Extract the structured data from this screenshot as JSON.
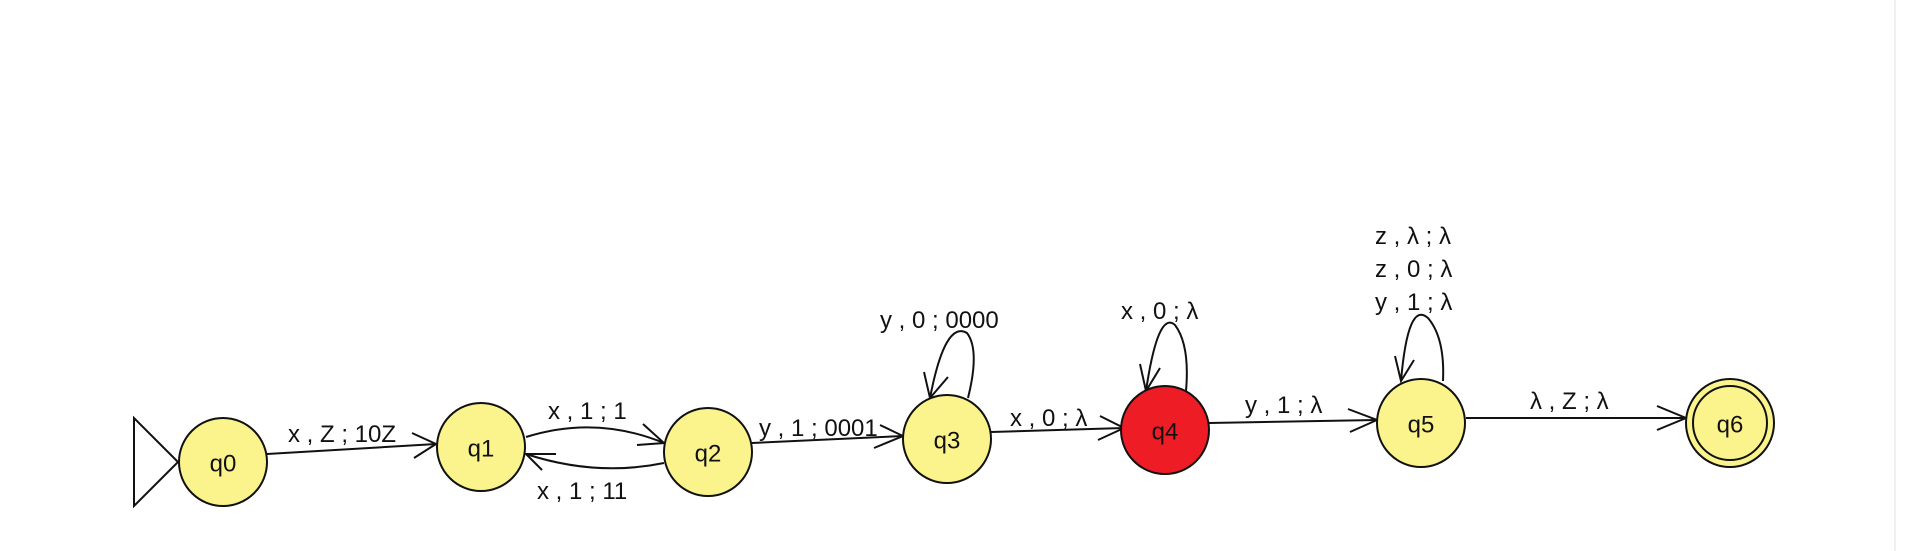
{
  "diagram": {
    "type": "pushdown-automaton",
    "colors": {
      "state_fill": "#FBF48C",
      "active_state_fill": "#EE1C25",
      "stroke": "#111111"
    },
    "states": [
      {
        "id": "q0",
        "label": "q0",
        "initial": true
      },
      {
        "id": "q1",
        "label": "q1"
      },
      {
        "id": "q2",
        "label": "q2"
      },
      {
        "id": "q3",
        "label": "q3"
      },
      {
        "id": "q4",
        "label": "q4",
        "highlighted": true
      },
      {
        "id": "q5",
        "label": "q5"
      },
      {
        "id": "q6",
        "label": "q6",
        "final": true
      }
    ],
    "transitions": [
      {
        "from": "q0",
        "to": "q1",
        "labels": [
          "x , Z ; 10Z"
        ]
      },
      {
        "from": "q1",
        "to": "q2",
        "labels": [
          "x , 1 ; 1"
        ]
      },
      {
        "from": "q2",
        "to": "q1",
        "labels": [
          "x , 1 ; 11"
        ]
      },
      {
        "from": "q2",
        "to": "q3",
        "labels": [
          "y , 1 ; 0001"
        ]
      },
      {
        "from": "q3",
        "to": "q3",
        "labels": [
          "y , 0 ; 0000"
        ]
      },
      {
        "from": "q3",
        "to": "q4",
        "labels": [
          "x , 0 ; λ"
        ]
      },
      {
        "from": "q4",
        "to": "q4",
        "labels": [
          "x , 0 ; λ"
        ]
      },
      {
        "from": "q4",
        "to": "q5",
        "labels": [
          "y , 1 ; λ"
        ]
      },
      {
        "from": "q5",
        "to": "q5",
        "labels": [
          "z , λ ; λ",
          "z , 0 ; λ",
          "y , 1 ; λ"
        ]
      },
      {
        "from": "q5",
        "to": "q6",
        "labels": [
          "λ , Z ; λ"
        ]
      }
    ]
  }
}
